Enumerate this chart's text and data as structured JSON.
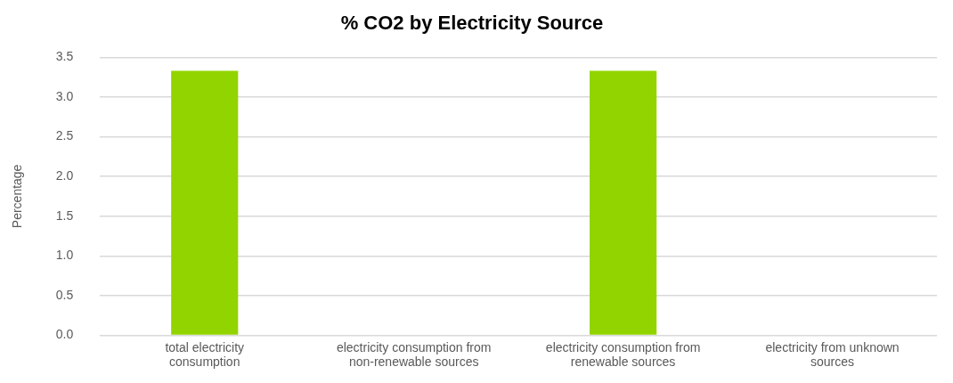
{
  "chart_data": {
    "type": "bar",
    "title": "% CO2 by Electricity Source",
    "ylabel": "Percentage",
    "categories": [
      "total electricity consumption",
      "electricity consumption from non-renewable sources",
      "electricity consumption from renewable sources",
      "electricity from unknown sources"
    ],
    "values": [
      3.33,
      0,
      3.33,
      0
    ],
    "color": "#92d400",
    "ylim": [
      0,
      3.5
    ],
    "yticks": [
      {
        "value": 0,
        "label": "0.0"
      },
      {
        "value": 0.5,
        "label": "0.5"
      },
      {
        "value": 1,
        "label": "1.0"
      },
      {
        "value": 1.5,
        "label": "1.5"
      },
      {
        "value": 2,
        "label": "2.0"
      },
      {
        "value": 2.5,
        "label": "2.5"
      },
      {
        "value": 3,
        "label": "3.0"
      },
      {
        "value": 3.5,
        "label": "3.5"
      }
    ],
    "grid": "y",
    "legend": false
  }
}
